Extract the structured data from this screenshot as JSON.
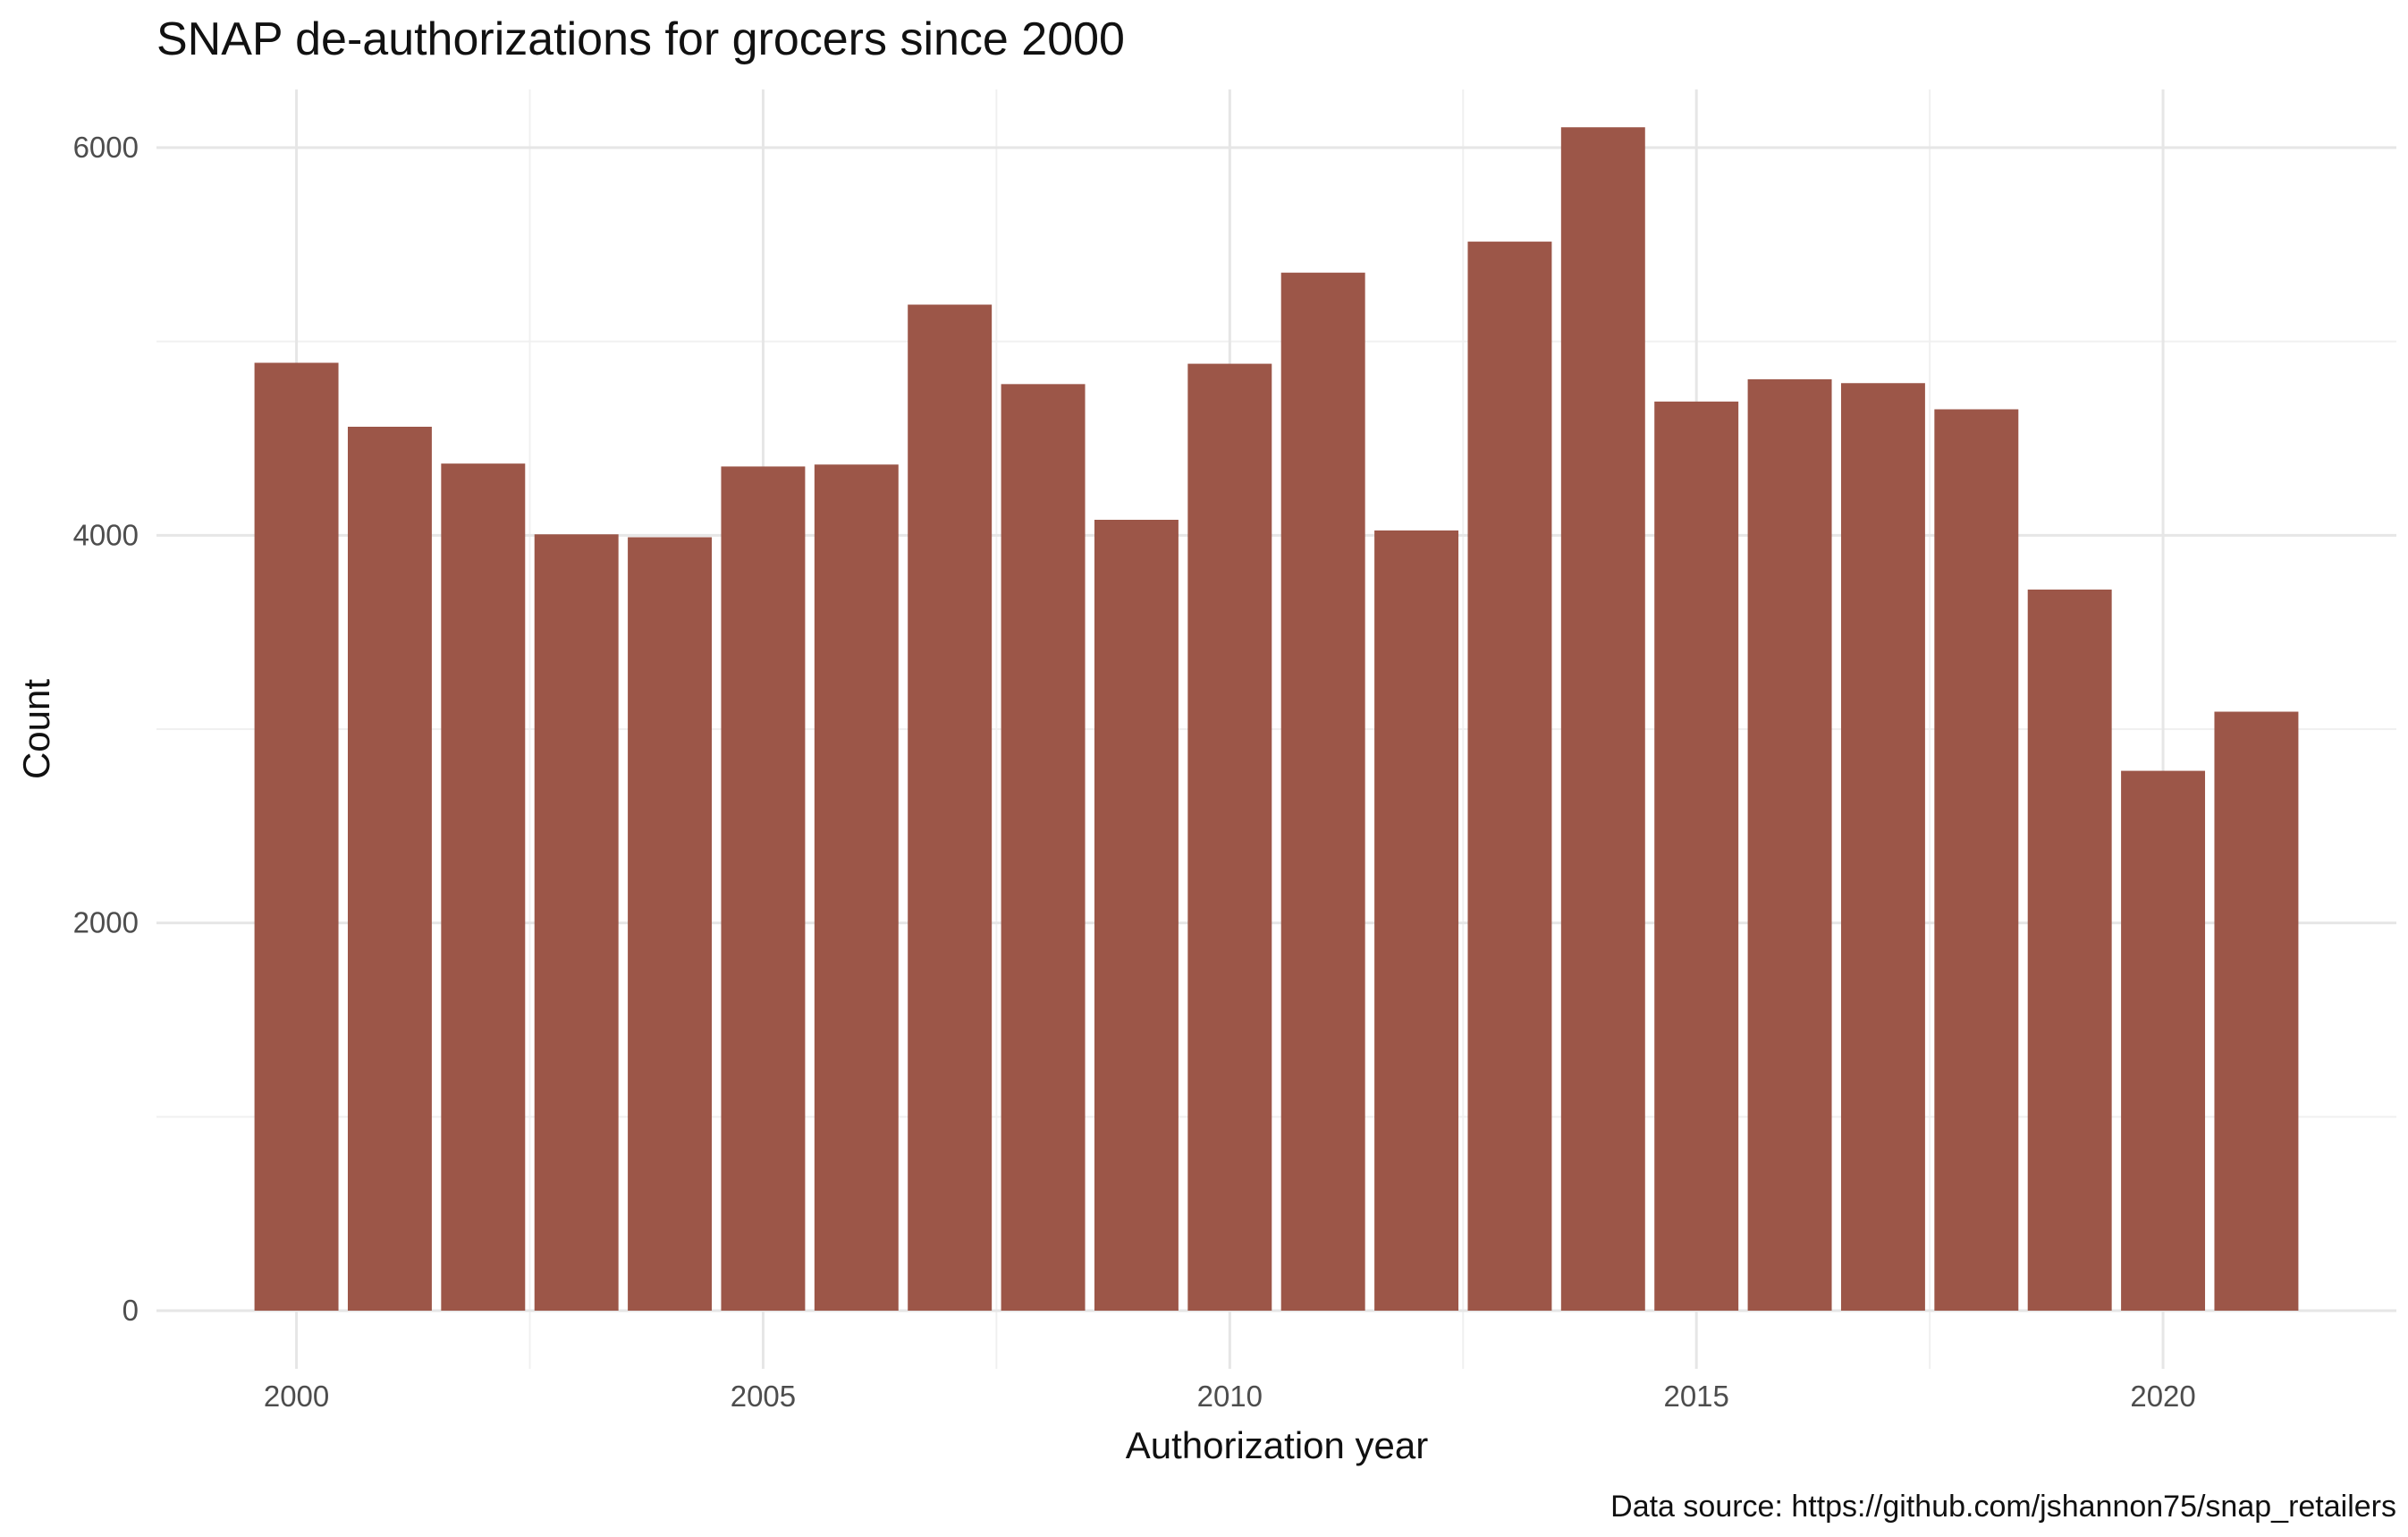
{
  "chart_data": {
    "type": "bar",
    "title": "SNAP de-authorizations for grocers since 2000",
    "xlabel": "Authorization year",
    "ylabel": "Count",
    "caption": "Data source: https://github.com/jshannon75/snap_retailers",
    "categories": [
      2000,
      2001,
      2002,
      2003,
      2004,
      2005,
      2006,
      2007,
      2008,
      2009,
      2010,
      2011,
      2012,
      2013,
      2014,
      2015,
      2016,
      2017,
      2018,
      2019,
      2020,
      2021
    ],
    "values": [
      4890,
      4560,
      4370,
      4005,
      3990,
      4355,
      4365,
      5190,
      4780,
      4080,
      4885,
      5355,
      4025,
      5515,
      6105,
      4690,
      4805,
      4785,
      4650,
      3720,
      2785,
      3090
    ],
    "x_ticks": [
      2000,
      2005,
      2010,
      2015,
      2020
    ],
    "y_ticks": [
      0,
      2000,
      4000,
      6000
    ],
    "xlim": [
      1998.5,
      2022.5
    ],
    "ylim": [
      -300,
      6300
    ],
    "grid": true,
    "legend": "none",
    "bar_color": "#9C5648"
  }
}
